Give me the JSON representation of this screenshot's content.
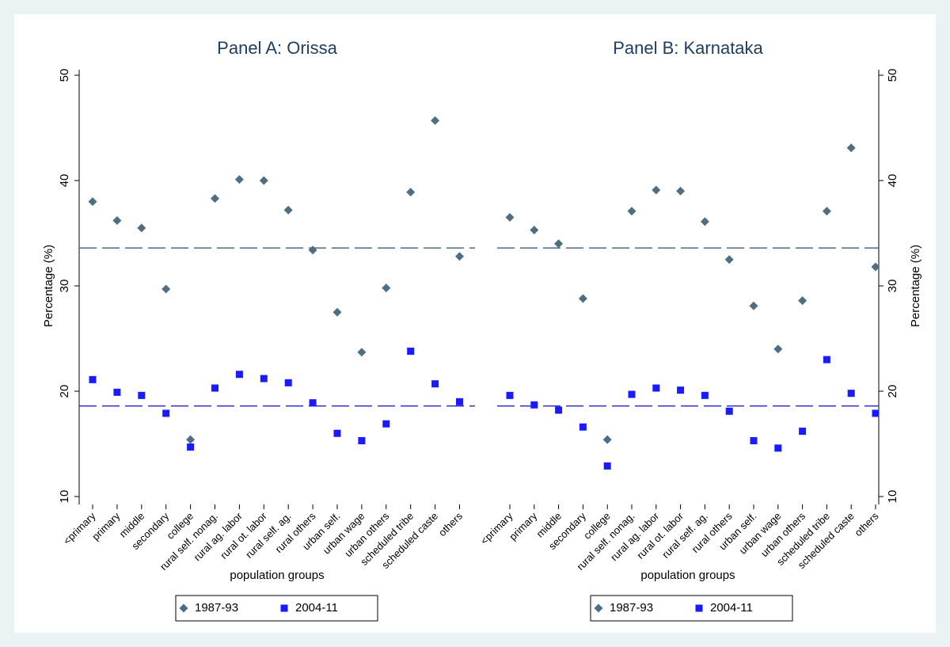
{
  "chart_data": [
    {
      "type": "scatter",
      "title": "Panel A: Orissa",
      "xlabel": "population groups",
      "ylabel": "Percentage (%)",
      "y_axis_side": "left",
      "categories": [
        "<primary",
        "primary",
        "middle",
        "secondary",
        "college",
        "rural self. nonag.",
        "rural ag. labor",
        "rural ot. labor",
        "rural self. ag.",
        "rural others",
        "urban self.",
        "urban wage",
        "urban others",
        "scheduled tribe",
        "scheduled caste",
        "others"
      ],
      "series": [
        {
          "name": "1987-93",
          "color": "#4f6e82",
          "marker": "diamond",
          "values": [
            38.0,
            36.2,
            35.5,
            29.7,
            15.4,
            38.3,
            40.1,
            40.0,
            37.2,
            33.4,
            27.5,
            23.7,
            29.8,
            38.9,
            45.7,
            32.8
          ]
        },
        {
          "name": "2004-11",
          "color": "#1a1aff",
          "marker": "square",
          "values": [
            21.1,
            19.9,
            19.6,
            17.9,
            14.7,
            20.3,
            21.6,
            21.2,
            20.8,
            18.9,
            16.0,
            15.3,
            16.9,
            23.8,
            20.7,
            19.0
          ]
        }
      ],
      "hlines": [
        {
          "value": 33.6,
          "color": "#4a6d85"
        },
        {
          "value": 18.6,
          "color": "#2b2bcf"
        }
      ],
      "ylim": [
        10,
        50
      ],
      "yticks": [
        10,
        20,
        30,
        40,
        50
      ]
    },
    {
      "type": "scatter",
      "title": "Panel B: Karnataka",
      "xlabel": "population groups",
      "ylabel": "Percentage (%)",
      "y_axis_side": "right",
      "categories": [
        "<primary",
        "primary",
        "middle",
        "secondary",
        "college",
        "rural self. nonag.",
        "rural ag. labor",
        "rural ot. labor",
        "rural self. ag.",
        "rural others",
        "urban self.",
        "urban wage",
        "urban others",
        "scheduled tribe",
        "scheduled caste",
        "others"
      ],
      "series": [
        {
          "name": "1987-93",
          "color": "#4f6e82",
          "marker": "diamond",
          "values": [
            36.5,
            35.3,
            34.0,
            28.8,
            15.4,
            37.1,
            39.1,
            39.0,
            36.1,
            32.5,
            28.1,
            24.0,
            28.6,
            37.1,
            43.1,
            31.8
          ]
        },
        {
          "name": "2004-11",
          "color": "#1a1aff",
          "marker": "square",
          "values": [
            19.6,
            18.7,
            18.2,
            16.6,
            12.9,
            19.7,
            20.3,
            20.1,
            19.6,
            18.1,
            15.3,
            14.6,
            16.2,
            23.0,
            19.8,
            17.9
          ]
        }
      ],
      "hlines": [
        {
          "value": 33.6,
          "color": "#4a6d85"
        },
        {
          "value": 18.6,
          "color": "#2b2bcf"
        }
      ],
      "ylim": [
        10,
        50
      ],
      "yticks": [
        10,
        20,
        30,
        40,
        50
      ]
    }
  ]
}
